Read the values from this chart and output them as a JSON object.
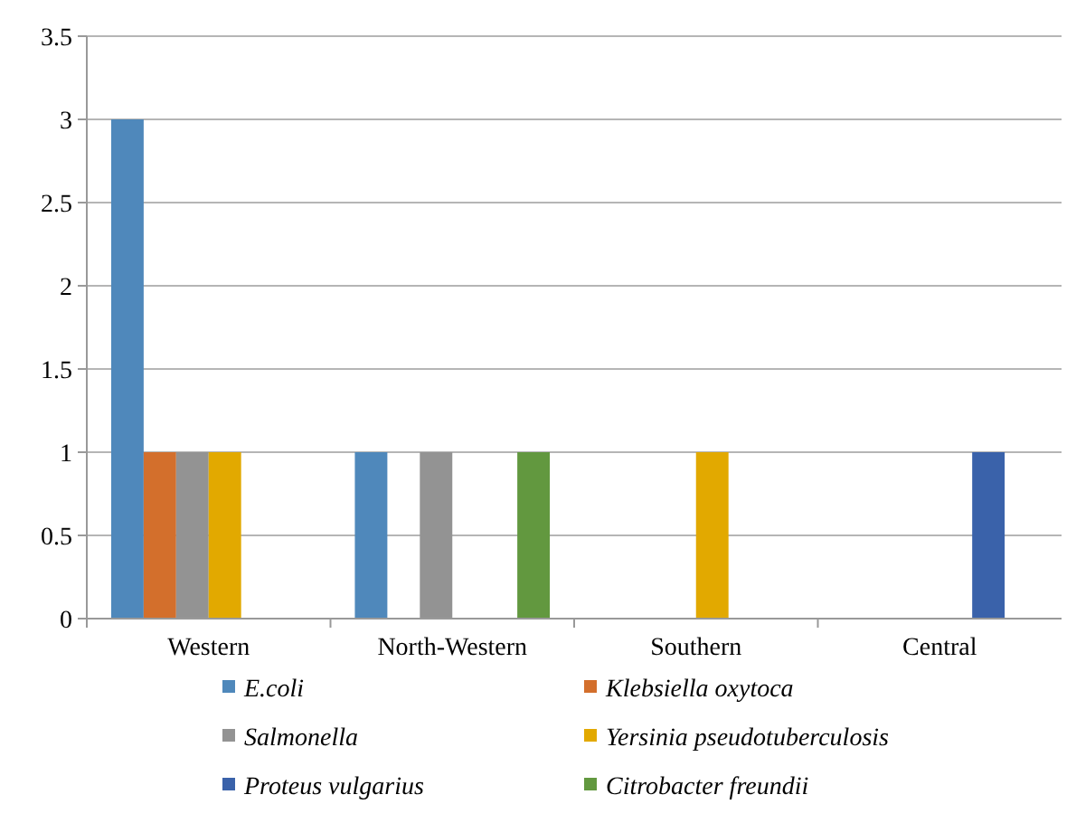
{
  "chart_data": {
    "type": "bar",
    "categories": [
      "Western",
      "North-Western",
      "Southern",
      "Central"
    ],
    "series": [
      {
        "name": "E.coli",
        "color": "#4f88bb",
        "values": [
          3,
          1,
          0,
          0
        ]
      },
      {
        "name": "Klebsiella oxytoca",
        "color": "#d36f2c",
        "values": [
          1,
          0,
          0,
          0
        ]
      },
      {
        "name": "Salmonella",
        "color": "#939393",
        "values": [
          1,
          1,
          0,
          0
        ]
      },
      {
        "name": "Yersinia pseudotuberculosis",
        "color": "#e2a900",
        "values": [
          1,
          0,
          1,
          0
        ]
      },
      {
        "name": "Proteus vulgarius",
        "color": "#3a62aa",
        "values": [
          0,
          0,
          0,
          1
        ]
      },
      {
        "name": "Citrobacter freundii",
        "color": "#62983f",
        "values": [
          0,
          1,
          0,
          0
        ]
      }
    ],
    "ylim": [
      0,
      3.5
    ],
    "yticks": [
      0,
      0.5,
      1,
      1.5,
      2,
      2.5,
      3,
      3.5
    ],
    "grid": "y",
    "legend": "bottom"
  }
}
